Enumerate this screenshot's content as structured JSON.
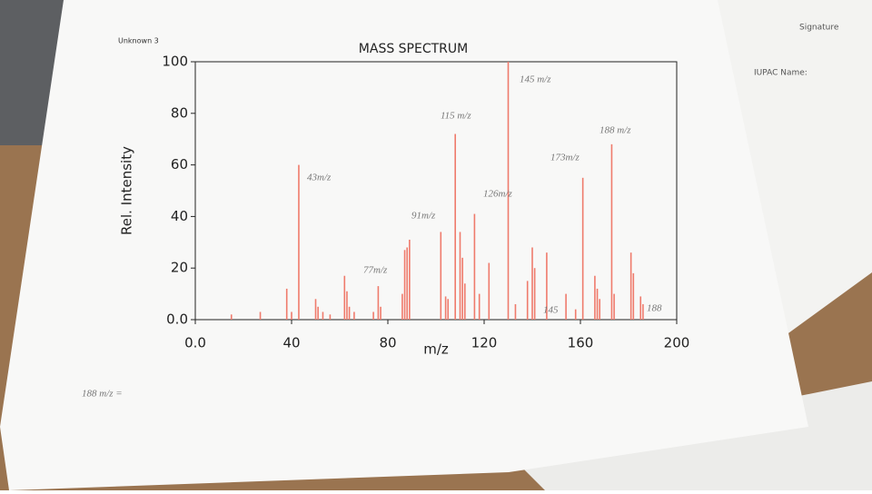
{
  "header": "Unknown 3",
  "side_sheet": [
    "Signature",
    "IUPAC Name:"
  ],
  "chart_data": {
    "type": "bar",
    "title": "MASS SPECTRUM",
    "x_label": "m/z",
    "y_label": "Rel. Intensity",
    "x": [
      15,
      27,
      38,
      40,
      43,
      50,
      51,
      53,
      56,
      62,
      63,
      64,
      66,
      74,
      76,
      77,
      86,
      87,
      88,
      89,
      102,
      104,
      105,
      108,
      110,
      111,
      112,
      116,
      118,
      122,
      130,
      133,
      138,
      140,
      141,
      146,
      154,
      158,
      161,
      166,
      167,
      168,
      173,
      174,
      181,
      182,
      185,
      186
    ],
    "values": [
      2,
      3,
      12,
      3,
      60,
      8,
      5,
      3,
      2,
      17,
      11,
      5,
      3,
      3,
      13,
      5,
      10,
      27,
      28,
      31,
      34,
      9,
      8,
      72,
      34,
      24,
      14,
      41,
      10,
      22,
      100,
      6,
      15,
      28,
      20,
      26,
      10,
      4,
      55,
      17,
      12,
      8,
      68,
      10,
      26,
      18,
      9,
      6
    ],
    "color": "#ef7b6c",
    "xlim": [
      0,
      200
    ],
    "xticks": [
      {
        "value": 0,
        "label": "0.0"
      },
      40,
      80,
      120,
      160,
      200
    ],
    "ylim": [
      0,
      100
    ],
    "yticks": [
      {
        "value": 0,
        "label": "0.0"
      },
      20,
      40,
      60,
      80,
      100
    ],
    "annotations": [
      "43m/z",
      "77m/z",
      "91m/z",
      "115 m/z",
      "126m/z",
      "145 m/z",
      "173m/z",
      "188 m/z",
      "145",
      "188",
      "188 m/z ="
    ]
  }
}
